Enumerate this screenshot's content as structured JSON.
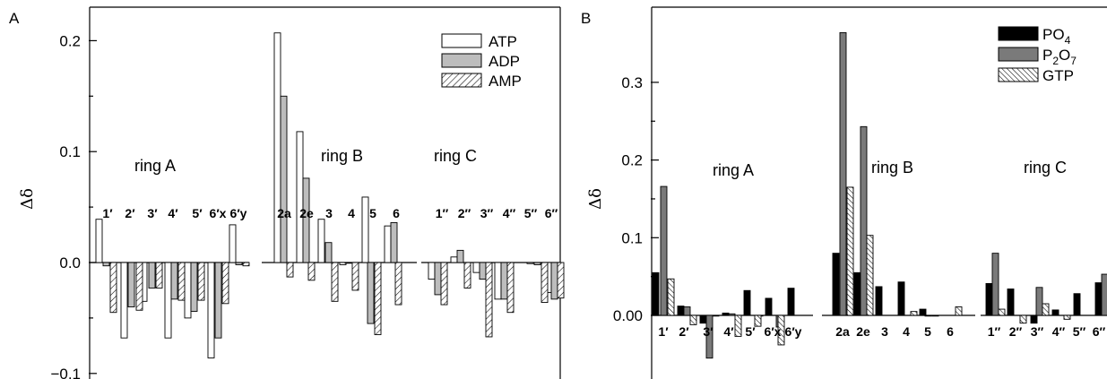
{
  "chart_data": [
    {
      "type": "bar",
      "panel_label": "A",
      "ylabel": "Δδ",
      "ylim": [
        -0.1,
        0.22
      ],
      "yticks": [
        -0.1,
        0.0,
        0.1,
        0.2
      ],
      "ytick_labels": [
        "−0.1",
        "0.0",
        "0.1",
        "0.2"
      ],
      "categories": [
        "1′",
        "2′",
        "3′",
        "4′",
        "5′",
        "6′x",
        "6′y",
        "2a",
        "2e",
        "3",
        "4",
        "5",
        "6",
        "1′′",
        "2′′",
        "3′′",
        "4′′",
        "5′′",
        "6′′"
      ],
      "group_labels": [
        "ring A",
        "ring B",
        "ring C"
      ],
      "legend_position": "top-right",
      "series": [
        {
          "name": "ATP",
          "pattern": "white",
          "values": [
            0.039,
            -0.068,
            -0.035,
            -0.068,
            -0.05,
            -0.086,
            0.034,
            0.207,
            0.118,
            0.039,
            -0.002,
            0.059,
            0.033,
            -0.015,
            0.005,
            -0.009,
            -0.033,
            -0.001,
            -0.027
          ]
        },
        {
          "name": "ADP",
          "pattern": "gray",
          "values": [
            -0.003,
            -0.04,
            -0.023,
            -0.033,
            -0.044,
            -0.068,
            -0.002,
            0.15,
            0.076,
            0.018,
            0.0,
            -0.055,
            0.036,
            -0.029,
            0.011,
            -0.015,
            -0.033,
            -0.002,
            -0.033
          ]
        },
        {
          "name": "AMP",
          "pattern": "hatch",
          "values": [
            -0.045,
            -0.043,
            -0.023,
            -0.034,
            -0.034,
            -0.037,
            -0.003,
            -0.013,
            -0.016,
            -0.035,
            -0.025,
            -0.065,
            -0.038,
            -0.038,
            -0.023,
            -0.067,
            -0.045,
            -0.036,
            -0.032
          ]
        }
      ]
    },
    {
      "type": "bar",
      "panel_label": "B",
      "ylabel": "Δδ",
      "ylim": [
        -0.08,
        0.38
      ],
      "yticks": [
        0.0,
        0.1,
        0.2,
        0.3
      ],
      "ytick_labels": [
        "0.00",
        "0.1",
        "0.2",
        "0.3"
      ],
      "categories": [
        "1′",
        "2′",
        "3′",
        "4′",
        "5′",
        "6′x",
        "6′y",
        "2a",
        "2e",
        "3",
        "4",
        "5",
        "6",
        "1′′",
        "2′′",
        "3′′",
        "4′′",
        "5′′",
        "6′′"
      ],
      "group_labels": [
        "ring A",
        "ring B",
        "ring C"
      ],
      "legend_position": "top-right",
      "series": [
        {
          "name": "PO4",
          "legend_label": "PO",
          "legend_sub": "4",
          "pattern": "black",
          "values": [
            0.055,
            0.012,
            -0.01,
            0.003,
            0.032,
            0.022,
            0.035,
            0.08,
            0.055,
            0.037,
            0.043,
            0.008,
            null,
            0.041,
            0.034,
            -0.01,
            0.007,
            0.028,
            0.042
          ]
        },
        {
          "name": "P2O7",
          "legend_label": "P",
          "legend_sub": "2",
          "legend_label2": "O",
          "legend_sub2": "7",
          "pattern": "darkgray",
          "values": [
            0.166,
            0.011,
            -0.055,
            0.002,
            0.0,
            -0.015,
            null,
            0.364,
            0.243,
            null,
            null,
            0.0,
            null,
            0.08,
            null,
            0.036,
            null,
            null,
            0.053
          ]
        },
        {
          "name": "GTP",
          "pattern": "hatch",
          "values": [
            0.047,
            -0.012,
            0.0,
            -0.027,
            -0.014,
            -0.038,
            null,
            0.165,
            0.103,
            null,
            0.005,
            0.0,
            0.011,
            0.008,
            -0.01,
            0.015,
            -0.005,
            null,
            null
          ]
        }
      ]
    }
  ]
}
